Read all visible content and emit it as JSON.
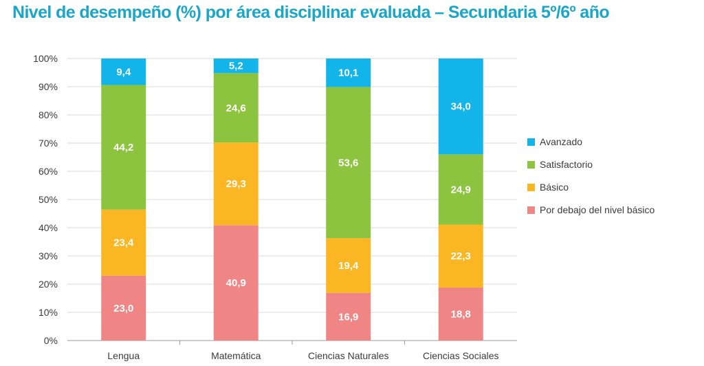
{
  "title": "Nivel de desempeño (%) por área disciplinar evaluada – Secundaria 5º/6º año",
  "chart_data": {
    "type": "bar",
    "stacked": true,
    "categories": [
      "Lengua",
      "Matemática",
      "Ciencias Naturales",
      "Ciencias Sociales"
    ],
    "series": [
      {
        "name": "Por debajo del nivel básico",
        "color": "#f08585",
        "values": [
          23.0,
          40.9,
          16.9,
          18.8
        ],
        "labels": [
          "23,0",
          "40,9",
          "16,9",
          "18,8"
        ]
      },
      {
        "name": "Básico",
        "color": "#fbb623",
        "values": [
          23.4,
          29.3,
          19.4,
          22.3
        ],
        "labels": [
          "23,4",
          "29,3",
          "19,4",
          "22,3"
        ]
      },
      {
        "name": "Satisfactorio",
        "color": "#8dc43f",
        "values": [
          44.2,
          24.6,
          53.6,
          24.9
        ],
        "labels": [
          "44,2",
          "24,6",
          "53,6",
          "24,9"
        ]
      },
      {
        "name": "Avanzado",
        "color": "#12b4ea",
        "values": [
          9.4,
          5.2,
          10.1,
          34.0
        ],
        "labels": [
          "9,4",
          "5,2",
          "10,1",
          "34,0"
        ]
      }
    ],
    "legend_order": [
      "Avanzado",
      "Satisfactorio",
      "Básico",
      "Por debajo del nivel básico"
    ],
    "yticks": [
      "0%",
      "10%",
      "20%",
      "30%",
      "40%",
      "50%",
      "60%",
      "70%",
      "80%",
      "90%",
      "100%"
    ],
    "ylim": [
      0,
      100
    ],
    "grid": true,
    "legend_position": "right"
  }
}
